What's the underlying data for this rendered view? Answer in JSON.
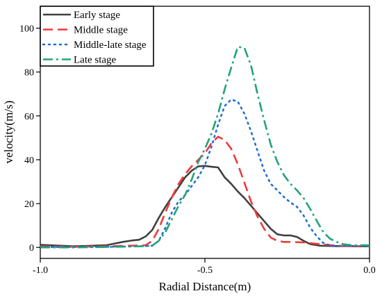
{
  "chart_data": {
    "type": "line",
    "title": "",
    "xlabel": "Radial Distance(m)",
    "ylabel": "velocity(m/s)",
    "xlim": [
      -1.0,
      0.0
    ],
    "ylim": [
      -5,
      110
    ],
    "x_ticks": [
      -1.0,
      -0.5,
      0.0
    ],
    "x_tick_labels": [
      "-1.0",
      "-0.5",
      "0.0"
    ],
    "y_ticks": [
      0,
      20,
      40,
      60,
      80,
      100
    ],
    "y_tick_labels": [
      "0",
      "20",
      "40",
      "60",
      "80",
      "100"
    ],
    "grid": false,
    "legend_position": "top-left",
    "series": [
      {
        "name": "Early stage",
        "color": "#404040",
        "dash": "solid",
        "x": [
          -1.0,
          -0.9,
          -0.8,
          -0.75,
          -0.72,
          -0.7,
          -0.68,
          -0.66,
          -0.64,
          -0.62,
          -0.6,
          -0.58,
          -0.56,
          -0.54,
          -0.52,
          -0.5,
          -0.48,
          -0.46,
          -0.44,
          -0.42,
          -0.4,
          -0.38,
          -0.36,
          -0.34,
          -0.32,
          -0.3,
          -0.28,
          -0.26,
          -0.24,
          -0.22,
          -0.2,
          -0.18,
          -0.15,
          -0.1,
          -0.05,
          0.0
        ],
        "y": [
          1.2,
          0.5,
          1.0,
          2.5,
          3.2,
          3.5,
          5.0,
          8.0,
          13.5,
          18.5,
          23.0,
          27.5,
          32.0,
          35.0,
          37.0,
          37.2,
          36.8,
          36.5,
          32.0,
          29.0,
          25.5,
          22.5,
          19.0,
          15.5,
          12.0,
          8.5,
          6.0,
          5.5,
          5.5,
          4.8,
          3.0,
          1.5,
          0.8,
          0.6,
          0.6,
          0.5
        ]
      },
      {
        "name": "Middle stage",
        "color": "#ee3a3a",
        "dash": "long-dash",
        "x": [
          -1.0,
          -0.9,
          -0.8,
          -0.72,
          -0.68,
          -0.66,
          -0.64,
          -0.62,
          -0.6,
          -0.58,
          -0.56,
          -0.54,
          -0.52,
          -0.5,
          -0.48,
          -0.46,
          -0.44,
          -0.42,
          -0.4,
          -0.38,
          -0.36,
          -0.34,
          -0.32,
          -0.3,
          -0.28,
          -0.26,
          -0.24,
          -0.2,
          -0.15,
          -0.1,
          -0.05,
          0.0
        ],
        "y": [
          0.5,
          0.3,
          0.5,
          0.8,
          1.0,
          3.0,
          8.5,
          16.0,
          23.0,
          29.0,
          33.5,
          37.0,
          40.0,
          43.0,
          47.5,
          50.5,
          49.0,
          45.0,
          38.0,
          29.5,
          21.0,
          14.0,
          8.5,
          4.5,
          3.0,
          2.5,
          2.5,
          2.3,
          1.5,
          0.8,
          0.5,
          0.5
        ]
      },
      {
        "name": "Middle-late stage",
        "color": "#1f6fd1",
        "dash": "dot",
        "x": [
          -1.0,
          -0.9,
          -0.8,
          -0.7,
          -0.66,
          -0.64,
          -0.62,
          -0.6,
          -0.58,
          -0.56,
          -0.54,
          -0.52,
          -0.5,
          -0.48,
          -0.46,
          -0.44,
          -0.42,
          -0.4,
          -0.38,
          -0.36,
          -0.34,
          -0.32,
          -0.3,
          -0.28,
          -0.26,
          -0.24,
          -0.22,
          -0.2,
          -0.18,
          -0.16,
          -0.14,
          -0.12,
          -0.1,
          -0.05,
          0.0
        ],
        "y": [
          0.2,
          0.2,
          0.3,
          0.5,
          0.8,
          3.0,
          9.0,
          16.0,
          21.0,
          24.0,
          28.0,
          32.0,
          37.5,
          46.0,
          56.0,
          64.5,
          67.5,
          66.5,
          61.0,
          53.0,
          44.0,
          35.0,
          29.0,
          26.0,
          23.0,
          20.5,
          18.5,
          14.5,
          9.0,
          5.0,
          2.0,
          1.0,
          0.7,
          0.6,
          0.5
        ]
      },
      {
        "name": "Late stage",
        "color": "#1fa37a",
        "dash": "dash-dot",
        "x": [
          -1.0,
          -0.9,
          -0.8,
          -0.7,
          -0.66,
          -0.64,
          -0.62,
          -0.6,
          -0.58,
          -0.56,
          -0.54,
          -0.52,
          -0.5,
          -0.48,
          -0.46,
          -0.44,
          -0.42,
          -0.4,
          -0.38,
          -0.36,
          -0.34,
          -0.32,
          -0.3,
          -0.28,
          -0.26,
          -0.24,
          -0.22,
          -0.2,
          -0.18,
          -0.16,
          -0.14,
          -0.12,
          -0.1,
          -0.08,
          -0.05,
          0.0
        ],
        "y": [
          0.0,
          0.0,
          0.2,
          0.5,
          0.8,
          3.0,
          7.0,
          13.0,
          19.0,
          24.0,
          31.0,
          39.0,
          45.0,
          52.0,
          61.0,
          72.0,
          82.0,
          91.5,
          91.0,
          83.0,
          70.0,
          58.0,
          47.0,
          39.0,
          33.0,
          29.0,
          26.0,
          22.5,
          17.5,
          12.0,
          7.0,
          4.0,
          2.5,
          1.5,
          1.0,
          1.0
        ]
      }
    ]
  }
}
